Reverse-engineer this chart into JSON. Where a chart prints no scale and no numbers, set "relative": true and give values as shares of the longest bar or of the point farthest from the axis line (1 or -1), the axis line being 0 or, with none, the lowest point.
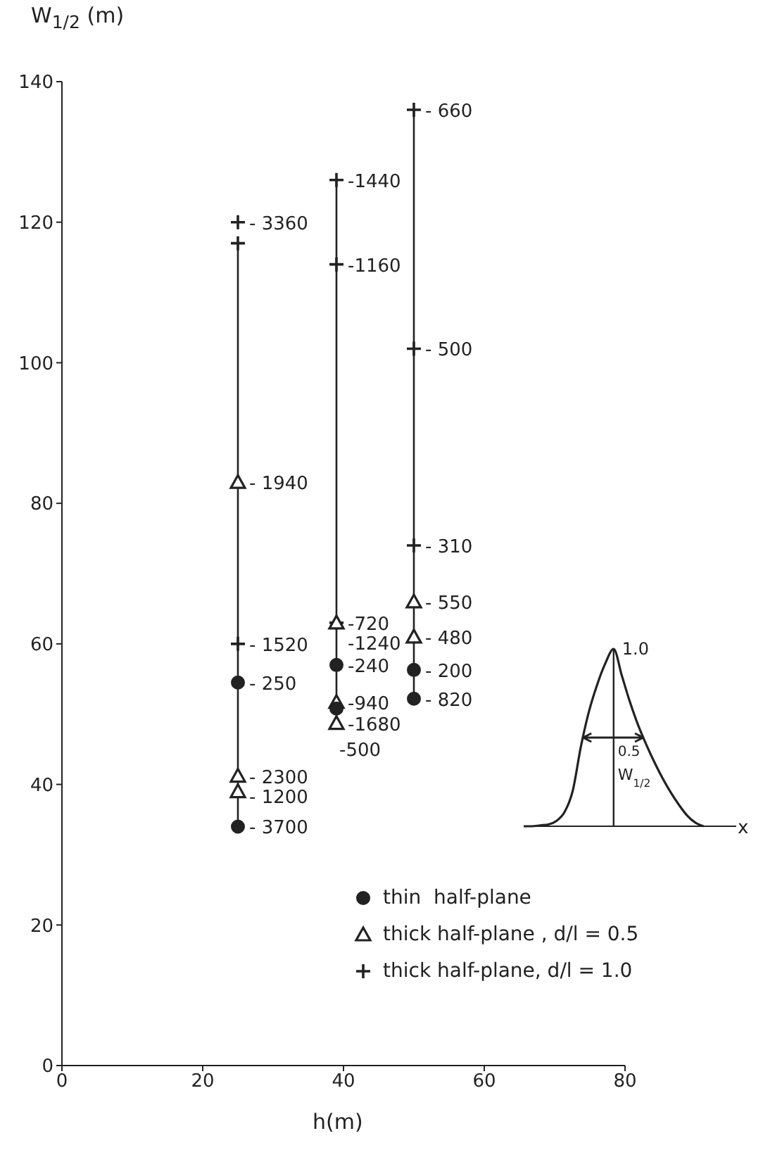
{
  "chart_data": [
    {
      "type": "scatter",
      "xlabel": "h(m)",
      "ylabel": "W$_{1/2}$ (m)",
      "xlim": [
        0,
        80
      ],
      "xticks": [
        0,
        20,
        40,
        60,
        80
      ],
      "ylim": [
        0,
        140
      ],
      "yticks": [
        0,
        20,
        40,
        60,
        80,
        100,
        120,
        140
      ],
      "grid": false,
      "legend": "bottom right",
      "series": [
        {
          "type": "line",
          "color": "#222222",
          "marker": "none",
          "x": [
            25,
            25
          ],
          "values": [
            34,
            117
          ]
        },
        {
          "type": "line",
          "color": "#222222",
          "marker": "none",
          "x": [
            39,
            39
          ],
          "values": [
            48.7,
            126
          ]
        },
        {
          "type": "line",
          "color": "#222222",
          "marker": "none",
          "x": [
            50,
            50
          ],
          "values": [
            52.2,
            136
          ]
        },
        {
          "name": "thin  half-plane",
          "color": "#222222",
          "marker": "circle",
          "x": [
            25,
            25,
            39,
            39,
            50,
            50
          ],
          "values": [
            54.5,
            34,
            57,
            50.8,
            56.3,
            52.2
          ]
        },
        {
          "name": "thick half-plane , d/l = 0.5",
          "color": "#222222",
          "marker": "triangle",
          "x": [
            25,
            25,
            25,
            39,
            39,
            39,
            50,
            50
          ],
          "values": [
            83,
            41.2,
            39,
            63,
            51.7,
            48.7,
            66,
            61
          ]
        },
        {
          "name": "thick half-plane, d/l = 1.0",
          "color": "#222222",
          "marker": "cross",
          "x": [
            25,
            25,
            25,
            39,
            39,
            39,
            50,
            50,
            50
          ],
          "values": [
            120,
            117,
            60,
            126,
            114,
            63,
            136,
            102,
            74
          ]
        }
      ],
      "annotations": [
        {
          "text": "- 3360",
          "x": 25,
          "y": 120
        },
        {
          "text": "- 1940",
          "x": 25,
          "y": 83
        },
        {
          "text": "- 1520",
          "x": 25,
          "y": 60
        },
        {
          "text": "- 250",
          "x": 25,
          "y": 54.5
        },
        {
          "text": "- 2300",
          "x": 25,
          "y": 41.2
        },
        {
          "text": "- 1200",
          "x": 25,
          "y": 39
        },
        {
          "text": "- 3700",
          "x": 25,
          "y": 34
        },
        {
          "text": "-1440",
          "x": 39,
          "y": 126
        },
        {
          "text": "-1160",
          "x": 39,
          "y": 114
        },
        {
          "text": "-720",
          "x": 39,
          "y": 63
        },
        {
          "text": "-1240",
          "x": 39,
          "y": 63
        },
        {
          "text": "-240",
          "x": 39,
          "y": 57
        },
        {
          "text": "-940",
          "x": 39,
          "y": 51.7
        },
        {
          "text": "-1680",
          "x": 39,
          "y": 48.7
        },
        "-500",
        {
          "text": "- 660",
          "x": 50,
          "y": 136
        },
        {
          "text": "- 500",
          "x": 50,
          "y": 102
        },
        {
          "text": "- 310",
          "x": 50,
          "y": 74
        },
        {
          "text": "- 550",
          "x": 50,
          "y": 66
        },
        {
          "text": "- 480",
          "x": 50,
          "y": 61
        },
        {
          "text": "- 200",
          "x": 50,
          "y": 56.3
        },
        {
          "text": "- 820",
          "x": 50,
          "y": 52.2
        }
      ]
    },
    {
      "type": "line",
      "relative": true,
      "xlabel": "x",
      "color": "#222222",
      "marker": "none",
      "categories": [
        null,
        null,
        null,
        null,
        null,
        null,
        null,
        null,
        null,
        null,
        null,
        null,
        null,
        null,
        null,
        null,
        null,
        null,
        null,
        null,
        null,
        null,
        null,
        null,
        null,
        null,
        null
      ],
      "values": [
        0,
        0,
        0.005,
        0.01,
        0.03,
        0.08,
        0.2,
        0.45,
        0.65,
        0.8,
        0.92,
        1,
        0.85,
        0.7,
        0.57,
        0.46,
        0.36,
        0.27,
        0.19,
        0.12,
        0.06,
        0.02,
        0,
        null,
        null,
        null,
        null
      ],
      "annotations": [
        "1.0",
        "0.5",
        "W$_{1/2}$"
      ]
    }
  ]
}
